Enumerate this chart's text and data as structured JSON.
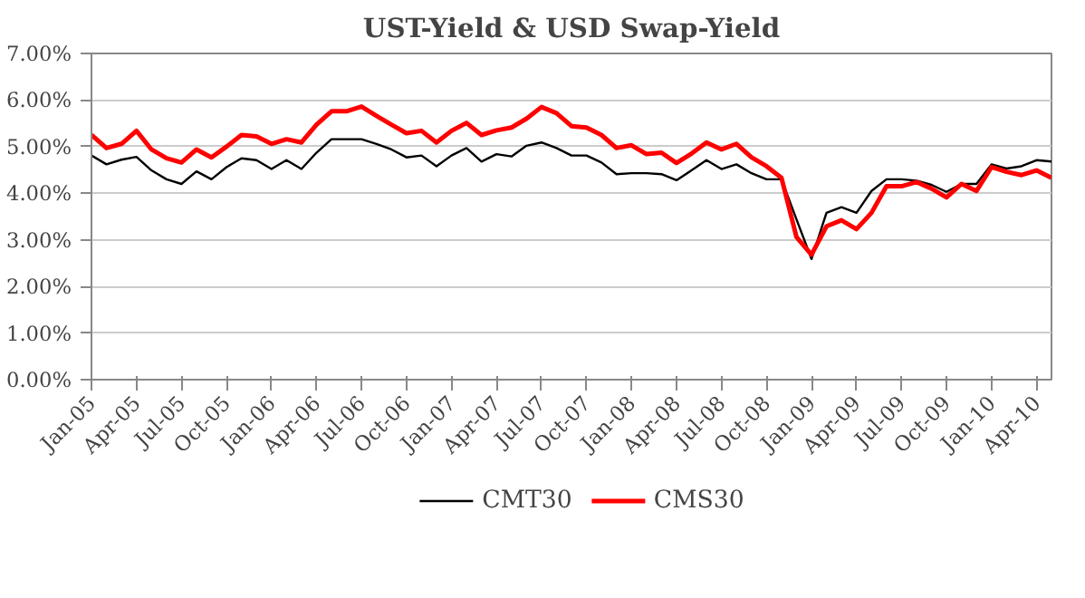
{
  "chart_data": {
    "type": "line",
    "title": "UST-Yield & USD Swap-Yield",
    "categories": [
      "Jan-05",
      null,
      null,
      "Apr-05",
      null,
      null,
      "Jul-05",
      null,
      null,
      "Oct-05",
      null,
      null,
      "Jan-06",
      null,
      null,
      "Apr-06",
      null,
      null,
      "Jul-06",
      null,
      null,
      "Oct-06",
      null,
      null,
      "Jan-07",
      null,
      null,
      "Apr-07",
      null,
      null,
      "Jul-07",
      null,
      null,
      "Oct-07",
      null,
      null,
      "Jan-08",
      null,
      null,
      "Apr-08",
      null,
      null,
      "Jul-08",
      null,
      null,
      "Oct-08",
      null,
      null,
      "Jan-09",
      null,
      null,
      "Apr-09",
      null,
      null,
      "Jul-09",
      null,
      null,
      "Oct-09",
      null,
      null,
      "Jan-10",
      null,
      null,
      "Apr-10",
      null
    ],
    "series": [
      {
        "name": "CMT30",
        "color": "#000000",
        "values": [
          4.81,
          4.62,
          4.72,
          4.78,
          4.49,
          4.3,
          4.2,
          4.47,
          4.3,
          4.56,
          4.75,
          4.71,
          4.52,
          4.71,
          4.52,
          4.87,
          5.16,
          5.16,
          5.16,
          5.06,
          4.94,
          4.77,
          4.81,
          4.58,
          4.81,
          4.97,
          4.68,
          4.84,
          4.79,
          5.02,
          5.09,
          4.97,
          4.81,
          4.81,
          4.66,
          4.41,
          4.43,
          4.43,
          4.41,
          4.28,
          4.49,
          4.71,
          4.52,
          4.62,
          4.43,
          4.3,
          4.3,
          3.44,
          2.59,
          3.58,
          3.7,
          3.58,
          4.05,
          4.3,
          4.3,
          4.27,
          4.18,
          4.03,
          4.2,
          4.2,
          4.62,
          4.53,
          4.58,
          4.71,
          4.68
        ]
      },
      {
        "name": "CMS30",
        "color": "#ff0000",
        "values": [
          5.25,
          4.97,
          5.06,
          5.34,
          4.94,
          4.75,
          4.66,
          4.94,
          4.77,
          5.0,
          5.25,
          5.22,
          5.06,
          5.16,
          5.09,
          5.47,
          5.76,
          5.76,
          5.86,
          5.66,
          5.47,
          5.29,
          5.34,
          5.09,
          5.34,
          5.51,
          5.25,
          5.35,
          5.41,
          5.6,
          5.85,
          5.72,
          5.44,
          5.41,
          5.25,
          4.97,
          5.03,
          4.84,
          4.87,
          4.65,
          4.85,
          5.09,
          4.94,
          5.06,
          4.77,
          4.58,
          4.33,
          3.06,
          2.68,
          3.29,
          3.42,
          3.23,
          3.58,
          4.15,
          4.15,
          4.24,
          4.1,
          3.91,
          4.2,
          4.05,
          4.56,
          4.46,
          4.39,
          4.49,
          4.33
        ]
      }
    ],
    "ylim": [
      0,
      7
    ],
    "yticks": [
      {
        "value": 0,
        "label": "0.00%"
      },
      {
        "value": 1,
        "label": "1.00%"
      },
      {
        "value": 2,
        "label": "2.00%"
      },
      {
        "value": 3,
        "label": "3.00%"
      },
      {
        "value": 4,
        "label": "4.00%"
      },
      {
        "value": 5,
        "label": "5.00%"
      },
      {
        "value": 6,
        "label": "6.00%"
      },
      {
        "value": 7,
        "label": "7.00%"
      }
    ],
    "grid": "y",
    "legend": "bottom",
    "line_style": "solid"
  }
}
